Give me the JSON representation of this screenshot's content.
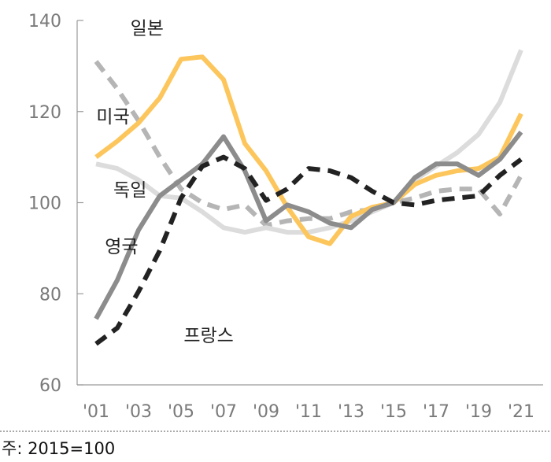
{
  "chart_data": {
    "type": "line",
    "title": "",
    "xlabel": "",
    "ylabel": "",
    "ylim": [
      60,
      140
    ],
    "yticks": [
      60,
      80,
      100,
      120,
      140
    ],
    "x_tick_labels": [
      "'01",
      "'03",
      "'05",
      "'07",
      "'09",
      "'11",
      "'13",
      "'15",
      "'17",
      "'19",
      "'21"
    ],
    "x": [
      2001,
      2002,
      2003,
      2004,
      2005,
      2006,
      2007,
      2008,
      2009,
      2010,
      2011,
      2012,
      2013,
      2014,
      2015,
      2016,
      2017,
      2018,
      2019,
      2020,
      2021
    ],
    "grid": false,
    "legend": "none (direct labels)",
    "series": [
      {
        "name": "일본",
        "color": "#FCC65C",
        "dash": "solid",
        "values": [
          110,
          113.5,
          117.5,
          123,
          131.5,
          132,
          127,
          113,
          107,
          99,
          92.5,
          91,
          97,
          99,
          100,
          104,
          106,
          107,
          107.5,
          110,
          119.5
        ]
      },
      {
        "name": "미국",
        "color": "#B5B5B5",
        "dash": "dashed",
        "values": [
          131,
          125,
          118,
          110,
          103,
          100,
          98.5,
          99.5,
          95,
          96,
          96.5,
          96.5,
          98,
          98.5,
          100,
          101,
          102.5,
          103,
          103,
          97.5,
          106
        ]
      },
      {
        "name": "독일",
        "color": "#DCDCDC",
        "dash": "solid",
        "values": [
          108.5,
          107.5,
          105,
          101.5,
          101,
          98,
          94.5,
          93.5,
          94.5,
          93.5,
          93.5,
          94.5,
          96,
          98,
          100,
          105,
          108,
          111,
          115,
          122,
          133.5
        ]
      },
      {
        "name": "영국",
        "color": "#8C8C8C",
        "dash": "solid",
        "values": [
          74.5,
          83,
          94,
          101.5,
          105,
          108.5,
          114.5,
          107,
          96,
          99.5,
          98,
          95.5,
          94.5,
          98.5,
          100,
          105.5,
          108.5,
          108.5,
          106,
          109.5,
          115.5
        ]
      },
      {
        "name": "프랑스",
        "color": "#222222",
        "dash": "dashed",
        "values": [
          69,
          72.5,
          80.5,
          89.5,
          101,
          108,
          110,
          107.5,
          100.5,
          103,
          107.5,
          107,
          105.5,
          102.5,
          100,
          99.5,
          100.5,
          101,
          101.5,
          106,
          109.5
        ]
      }
    ]
  },
  "footnote": "주: 2015=100"
}
